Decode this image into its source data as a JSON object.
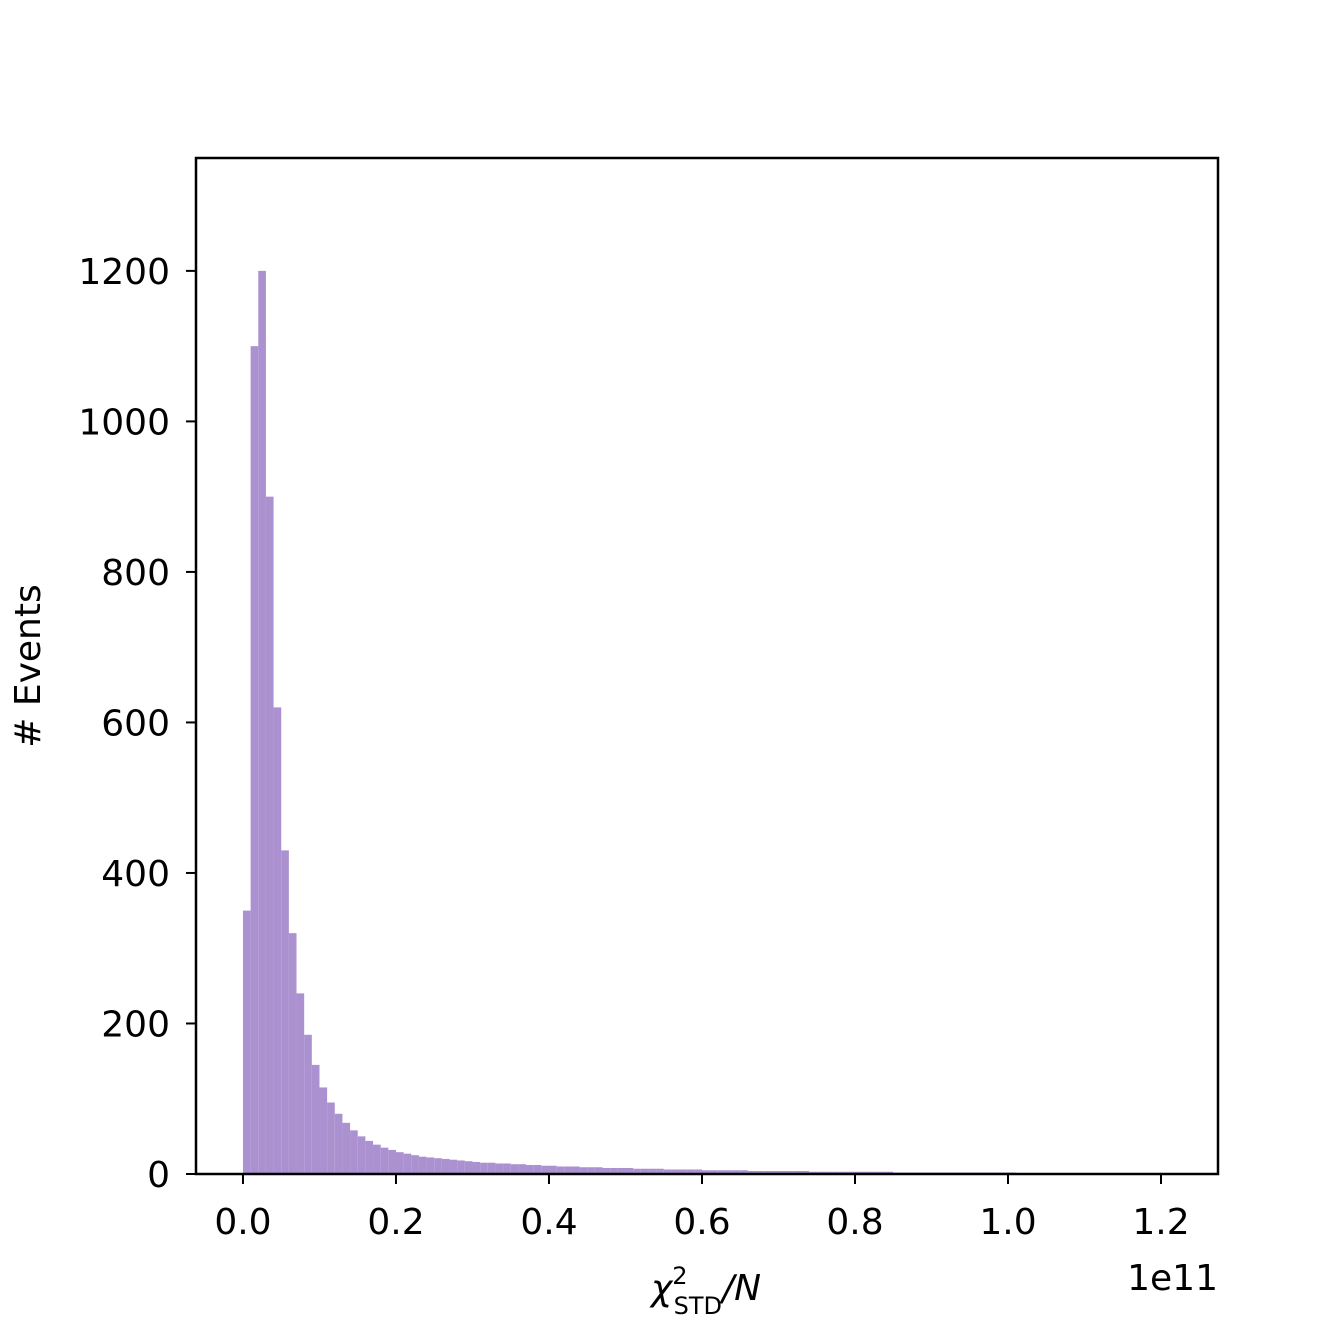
{
  "chart_data": {
    "type": "histogram",
    "xlabel": {
      "base": "χ",
      "sup": "2",
      "sub": "STD",
      "rest": "/N"
    },
    "ylabel": "# Events",
    "x_offset_label": "1e11",
    "color": "#a68bce",
    "bins": [
      0,
      0.01,
      0.02,
      0.03,
      0.04,
      0.05,
      0.06,
      0.07,
      0.08,
      0.09,
      0.1,
      0.11,
      0.12,
      0.13,
      0.14,
      0.15,
      0.16,
      0.17,
      0.18,
      0.19,
      0.2,
      0.21,
      0.22,
      0.23,
      0.24,
      0.25,
      0.26,
      0.27,
      0.28,
      0.29,
      0.3,
      0.31,
      0.32,
      0.33,
      0.34,
      0.35,
      0.36,
      0.37,
      0.38,
      0.39,
      0.4,
      0.41,
      0.42,
      0.43,
      0.44,
      0.45,
      0.46,
      0.47,
      0.48,
      0.49,
      0.5,
      0.51,
      0.52,
      0.53,
      0.54,
      0.55,
      0.56,
      0.57,
      0.58,
      0.59,
      0.6,
      0.61,
      0.62,
      0.63,
      0.64,
      0.65,
      0.66,
      0.67,
      0.68,
      0.69,
      0.7,
      0.71,
      0.72,
      0.73,
      0.74,
      0.75,
      0.76,
      0.77,
      0.78,
      0.79,
      0.8,
      0.81,
      0.82,
      0.83,
      0.84,
      0.85,
      0.86,
      0.87,
      0.88,
      0.89,
      0.9,
      0.91,
      0.92,
      0.93,
      0.94,
      0.95,
      0.96,
      0.97,
      0.98,
      0.99,
      1.0,
      1.01,
      1.02,
      1.03,
      1.04,
      1.05,
      1.06,
      1.07,
      1.08,
      1.09,
      1.1,
      1.11,
      1.12,
      1.13,
      1.14,
      1.15,
      1.16,
      1.17,
      1.18,
      1.19,
      1.2
    ],
    "counts": [
      350,
      1100,
      1200,
      900,
      620,
      430,
      320,
      240,
      185,
      145,
      115,
      95,
      80,
      68,
      58,
      50,
      44,
      39,
      35,
      32,
      29,
      27,
      25,
      23,
      22,
      21,
      20,
      19,
      18,
      17,
      16,
      15,
      15,
      14,
      14,
      13,
      13,
      12,
      12,
      11,
      11,
      10,
      10,
      10,
      9,
      9,
      9,
      8,
      8,
      8,
      8,
      7,
      7,
      7,
      7,
      6,
      6,
      6,
      6,
      6,
      5,
      5,
      5,
      5,
      5,
      5,
      4,
      4,
      4,
      4,
      4,
      4,
      4,
      4,
      3,
      3,
      3,
      3,
      3,
      3,
      3,
      3,
      3,
      3,
      3,
      2,
      2,
      2,
      2,
      2,
      2,
      2,
      2,
      2,
      2,
      2,
      2,
      2,
      2,
      2,
      2,
      1,
      1,
      1,
      1,
      1,
      1,
      1,
      1,
      1,
      1,
      1,
      1,
      1,
      1,
      1,
      1,
      1,
      1,
      1
    ],
    "xlim": [
      -0.0614,
      1.2745
    ],
    "ylim": [
      0,
      1350
    ],
    "xticks": [
      {
        "value": 0,
        "label": "0.0"
      },
      0.2,
      0.4,
      0.6,
      0.8,
      {
        "value": 1,
        "label": "1.0"
      },
      1.2
    ],
    "yticks": [
      0,
      200,
      400,
      600,
      800,
      1000,
      1200
    ]
  }
}
